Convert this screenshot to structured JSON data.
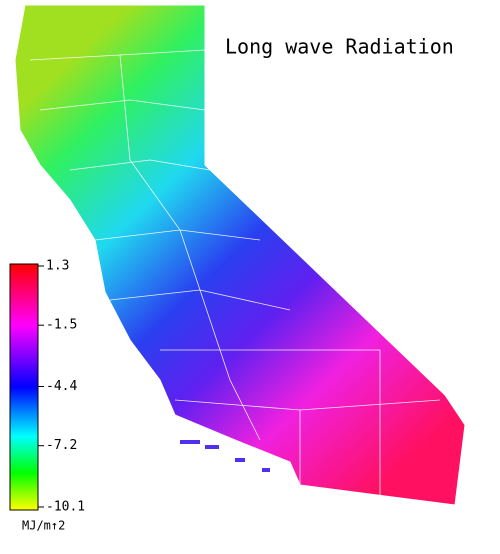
{
  "title": "Long wave Radiation",
  "colorbar": {
    "range": [
      -10.1,
      1.3
    ],
    "ticks": [
      1.3,
      -1.5,
      -4.4,
      -7.2,
      -10.1
    ],
    "unit": "MJ/m↑2"
  }
}
